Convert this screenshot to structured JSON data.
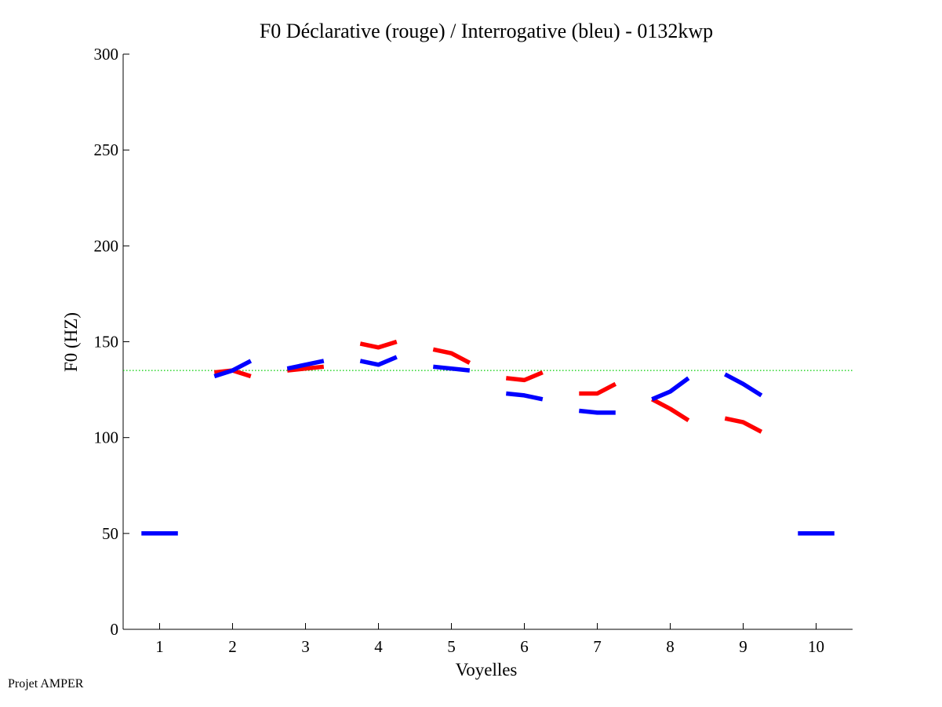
{
  "credit": "Projet AMPER",
  "chart_data": {
    "type": "line",
    "title": "F0 Déclarative (rouge) / Interrogative (bleu) - 0132kwp",
    "xlabel": "Voyelles",
    "ylabel": "F0 (HZ)",
    "xlim": [
      0.5,
      10.5
    ],
    "ylim": [
      0,
      300
    ],
    "xticks": [
      1,
      2,
      3,
      4,
      5,
      6,
      7,
      8,
      9,
      10
    ],
    "yticks": [
      0,
      50,
      100,
      150,
      200,
      250,
      300
    ],
    "reference_line": {
      "y": 135,
      "color": "#00cc00",
      "style": "dotted"
    },
    "series": [
      {
        "name": "Déclarative",
        "color": "#ff0000",
        "segments": [
          {
            "vowel": 2,
            "values": [
              134,
              135,
              132
            ]
          },
          {
            "vowel": 3,
            "values": [
              135,
              136,
              137
            ]
          },
          {
            "vowel": 4,
            "values": [
              149,
              147,
              150
            ]
          },
          {
            "vowel": 5,
            "values": [
              146,
              144,
              139
            ]
          },
          {
            "vowel": 6,
            "values": [
              131,
              130,
              134
            ]
          },
          {
            "vowel": 7,
            "values": [
              123,
              123,
              128
            ]
          },
          {
            "vowel": 8,
            "values": [
              120,
              115,
              109
            ]
          },
          {
            "vowel": 9,
            "values": [
              110,
              108,
              103
            ]
          }
        ]
      },
      {
        "name": "Interrogative",
        "color": "#0000ff",
        "segments": [
          {
            "vowel": 1,
            "values": [
              50,
              50,
              50
            ]
          },
          {
            "vowel": 2,
            "values": [
              132,
              135,
              140
            ]
          },
          {
            "vowel": 3,
            "values": [
              136,
              138,
              140
            ]
          },
          {
            "vowel": 4,
            "values": [
              140,
              138,
              142
            ]
          },
          {
            "vowel": 5,
            "values": [
              137,
              136,
              135
            ]
          },
          {
            "vowel": 6,
            "values": [
              123,
              122,
              120
            ]
          },
          {
            "vowel": 7,
            "values": [
              114,
              113,
              113
            ]
          },
          {
            "vowel": 8,
            "values": [
              120,
              124,
              131
            ]
          },
          {
            "vowel": 9,
            "values": [
              133,
              128,
              122
            ]
          },
          {
            "vowel": 10,
            "values": [
              50,
              50,
              50
            ]
          }
        ]
      }
    ]
  }
}
